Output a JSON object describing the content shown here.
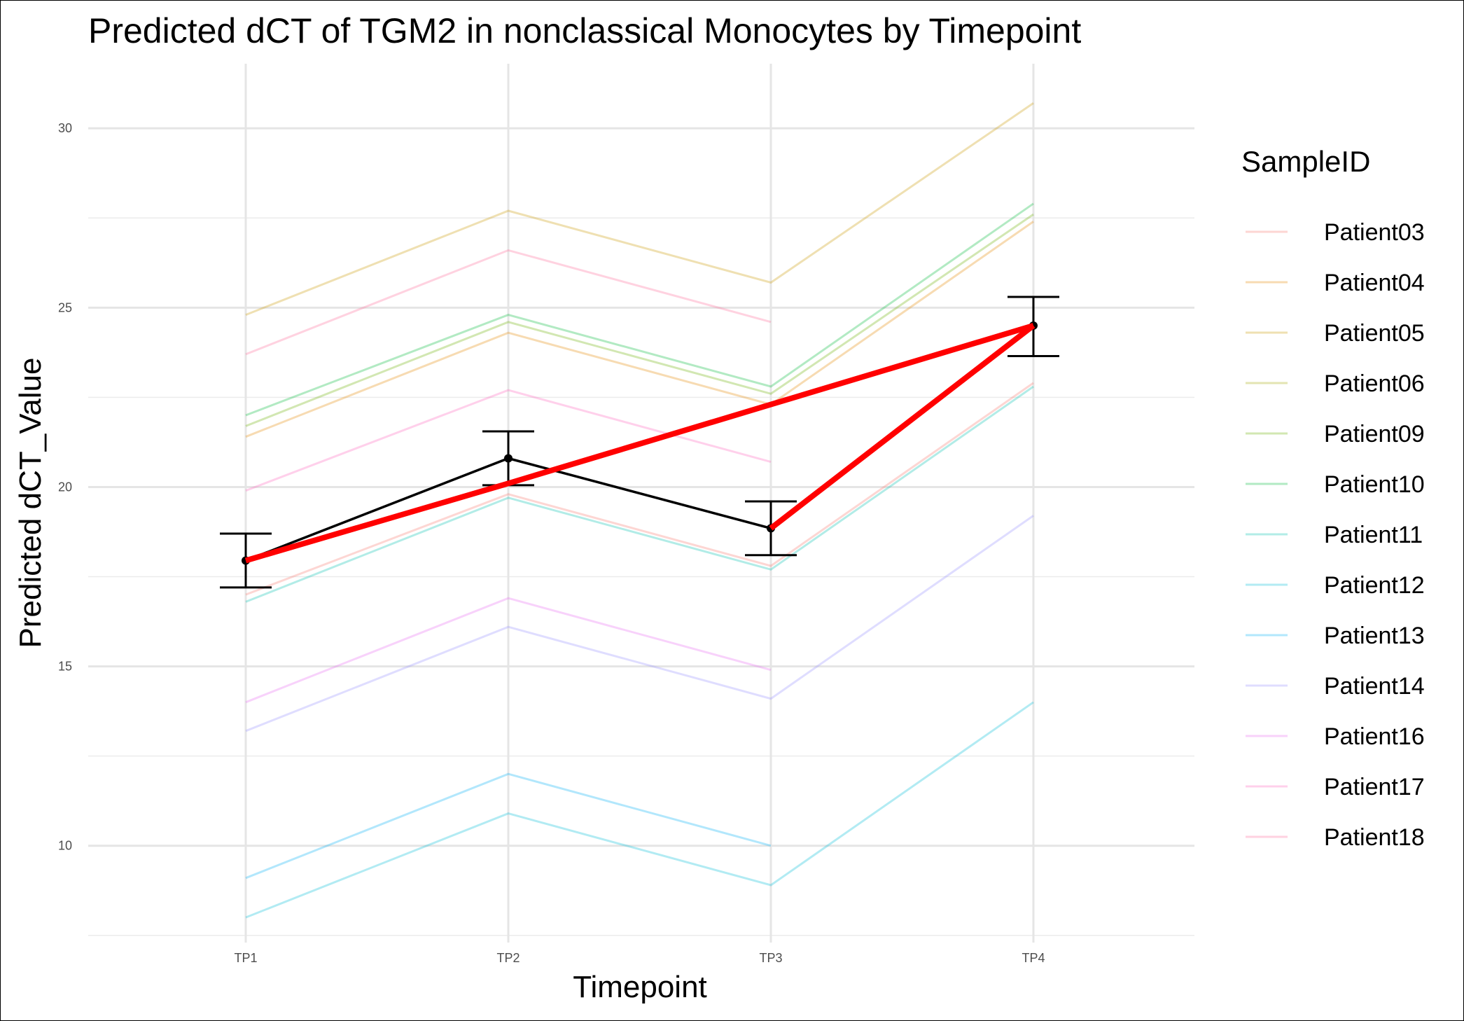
{
  "chart_data": {
    "type": "line",
    "title": "Predicted dCT of  TGM2 in  nonclassical  Monocytes by Timepoint",
    "xlabel": "Timepoint",
    "ylabel": "Predicted dCT_Value",
    "categories": [
      "TP1",
      "TP2",
      "TP3",
      "TP4"
    ],
    "ylim": [
      7.3,
      31.8
    ],
    "yticks": [
      10,
      15,
      20,
      25,
      30
    ],
    "grid": true,
    "legend": {
      "title": "SampleID",
      "position": "right"
    },
    "series": [
      {
        "name": "Patient03",
        "color": "#F8766D",
        "values": [
          17.0,
          19.8,
          17.8,
          22.9
        ]
      },
      {
        "name": "Patient04",
        "color": "#E58700",
        "values": [
          21.4,
          24.3,
          22.3,
          27.4
        ]
      },
      {
        "name": "Patient05",
        "color": "#C99800",
        "values": [
          24.8,
          27.7,
          25.7,
          30.7
        ]
      },
      {
        "name": "Patient06",
        "color": "#A3A500",
        "values": [
          null,
          null,
          null,
          null
        ]
      },
      {
        "name": "Patient09",
        "color": "#6BB100",
        "values": [
          21.7,
          24.6,
          22.6,
          27.6
        ]
      },
      {
        "name": "Patient10",
        "color": "#00BA38",
        "values": [
          22.0,
          24.8,
          22.8,
          27.9
        ]
      },
      {
        "name": "Patient11",
        "color": "#00C0AF",
        "values": [
          16.8,
          19.7,
          17.7,
          22.8
        ]
      },
      {
        "name": "Patient12",
        "color": "#00BCD8",
        "values": [
          8.0,
          10.9,
          8.9,
          14.0
        ]
      },
      {
        "name": "Patient13",
        "color": "#00B0F6",
        "values": [
          9.1,
          12.0,
          10.0,
          null
        ]
      },
      {
        "name": "Patient14",
        "color": "#9590FF",
        "values": [
          13.2,
          16.1,
          14.1,
          19.2
        ]
      },
      {
        "name": "Patient16",
        "color": "#E76BF3",
        "values": [
          14.0,
          16.9,
          14.9,
          null
        ]
      },
      {
        "name": "Patient17",
        "color": "#FF62BC",
        "values": [
          19.9,
          22.7,
          20.7,
          null
        ]
      },
      {
        "name": "Patient18",
        "color": "#FF6A98",
        "values": [
          23.7,
          26.6,
          24.6,
          null
        ]
      }
    ],
    "mean": {
      "values": [
        17.95,
        20.8,
        18.85,
        24.5
      ],
      "ci_low": [
        17.2,
        20.05,
        18.1,
        23.65
      ],
      "ci_high": [
        18.7,
        21.55,
        19.6,
        25.3
      ],
      "color": "#000000"
    },
    "trend": {
      "values": [
        17.95,
        20.1,
        22.3,
        24.5
      ],
      "break_values": [
        17.95,
        null,
        18.85,
        24.5
      ],
      "color": "#FF0000"
    }
  }
}
